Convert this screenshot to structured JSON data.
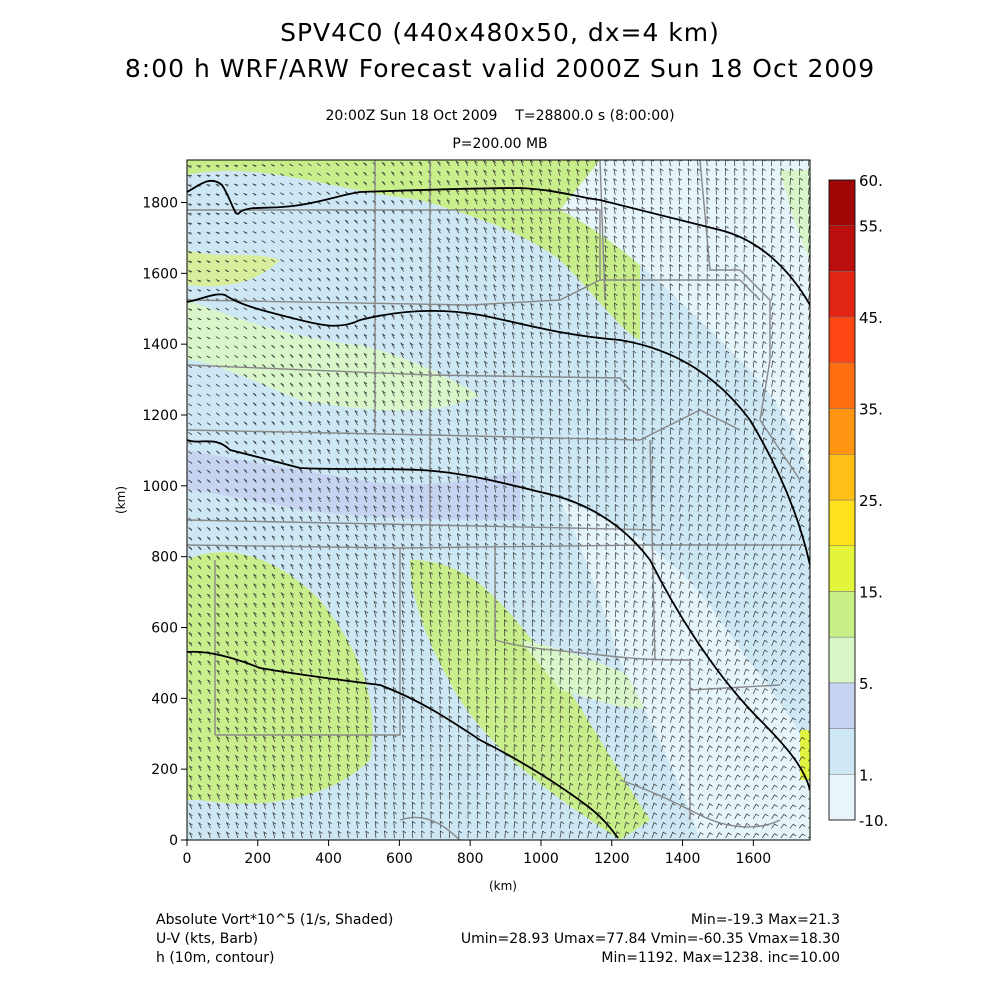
{
  "header": {
    "title": "SPV4C0 (440x480x50, dx=4 km)",
    "subtitle": "8:00 h WRF/ARW Forecast valid 2000Z Sun 18 Oct 2009",
    "valid_time": "20:00Z Sun 18 Oct 2009",
    "model_time": "T=28800.0 s (8:00:00)",
    "level": "P=200.00 MB"
  },
  "map": {
    "x_axis": {
      "label": "(km)",
      "range": [
        0,
        1760
      ],
      "ticks": [
        "0",
        "200",
        "400",
        "600",
        "800",
        "1000",
        "1200",
        "1400",
        "1600"
      ]
    },
    "y_axis": {
      "label": "(km)",
      "range": [
        0,
        1920
      ],
      "ticks": [
        "0",
        "200",
        "400",
        "600",
        "800",
        "1000",
        "1200",
        "1400",
        "1600",
        "1800"
      ]
    }
  },
  "colorbar": {
    "labels": [
      "60.",
      "55.",
      "45.",
      "35.",
      "25.",
      "15.",
      "5.",
      "1.",
      "-10."
    ],
    "colors": [
      "#e8f6fb",
      "#cde7f4",
      "#c6d4f2",
      "#d9f7c8",
      "#c8ee86",
      "#e3f53a",
      "#ffe21c",
      "#ffbf16",
      "#ff9510",
      "#ff6e10",
      "#ff4612",
      "#e02515",
      "#bb0e0e",
      "#a00606"
    ]
  },
  "footer": {
    "field1_label": "Absolute Vort*10^5 (1/s, Shaded)",
    "field1_stats": "Min=-19.3 Max=21.3",
    "field2_label": "U-V (kts, Barb)",
    "field2_stats": "Umin=28.93 Umax=77.84 Vmin=-60.35 Vmax=18.30",
    "field3_label": "h (10m, contour)",
    "field3_stats": "Min=1192. Max=1238. inc=10.00"
  }
}
